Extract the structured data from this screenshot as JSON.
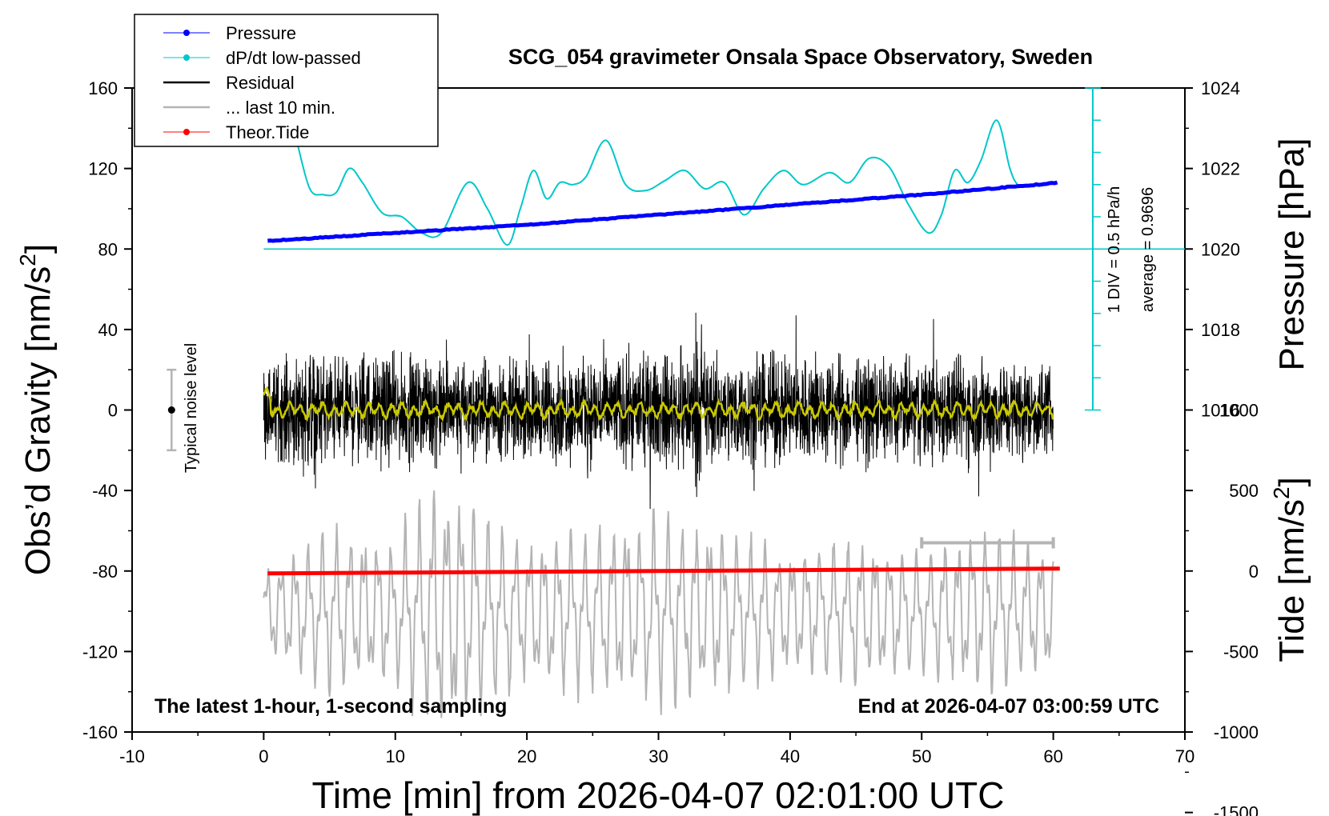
{
  "chart_data": {
    "type": "line",
    "title": "SCG_054 gravimeter Onsala Space Observatory, Sweden",
    "xlabel": "Time [min] from 2026-04-07 02:01:00 UTC",
    "ylabel_left": "Obs’d Gravity [nm/s",
    "ylabel_left_sup": "2",
    "ylabel_left_close": "]",
    "ylabel_pressure": "Pressure [hPa]",
    "ylabel_tide": "Tide [nm/s",
    "ylabel_tide_sup": "2",
    "ylabel_tide_close": "]",
    "xlim": [
      -10,
      70
    ],
    "ylim": [
      -160,
      160
    ],
    "x_ticks": [
      "-10",
      "0",
      "10",
      "20",
      "30",
      "40",
      "50",
      "60",
      "70"
    ],
    "y_ticks": [
      "-160",
      "-120",
      "-80",
      "-40",
      "0",
      "40",
      "80",
      "120",
      "160"
    ],
    "pressure_axis": {
      "ticks": [
        "1016",
        "1018",
        "1020",
        "1022",
        "1024"
      ],
      "values": [
        1016,
        1018,
        1020,
        1022,
        1024
      ],
      "ref": [
        1020,
        80
      ],
      "hpa_per_unit": 0.05
    },
    "tide_axis": {
      "ticks": [
        "-1500",
        "-1000",
        "-500",
        "0",
        "500",
        "1000"
      ],
      "values": [
        -1500,
        -1000,
        -500,
        0,
        500,
        1000
      ],
      "ref": [
        0,
        -80
      ],
      "nms2_per_unit": 12.5
    },
    "legend": {
      "placement": "top-left",
      "items": [
        {
          "label": "Pressure",
          "color": "#0000ff",
          "marker": true
        },
        {
          "label": "dP/dt low-passed",
          "color": "#00c8c8",
          "marker": true
        },
        {
          "label": "Residual",
          "color": "#000000",
          "marker": false
        },
        {
          "label": "... last 10 min.",
          "color": "#b4b4b4",
          "marker": false
        },
        {
          "label": "Theor.Tide",
          "color": "#ff0000",
          "marker": true
        }
      ]
    },
    "annotations": {
      "noise_label": "Typical noise level",
      "noise_bar": {
        "x": -7,
        "y": 0,
        "low": -20,
        "high": 20
      },
      "dpdt_scale": "1 DIV = 0.5 hPa/h",
      "dpdt_average": "average = 0.9696",
      "bottom_left": "The latest 1-hour, 1-second sampling",
      "bottom_right": "End at 2026-04-07 03:00:59 UTC",
      "last10_bar": {
        "x0": 50,
        "x1": 60,
        "y": -66
      }
    },
    "series": [
      {
        "name": "Pressure",
        "color": "#0000ff",
        "unit": "hPa",
        "x": [
          0.3,
          10,
          20,
          30,
          40,
          50,
          60.5
        ],
        "values": [
          1020.2,
          1020.4,
          1020.6,
          1020.85,
          1021.1,
          1021.35,
          1021.65
        ]
      },
      {
        "name": "dP/dt low-passed",
        "color": "#00c8c8",
        "x": [
          2.5,
          3.5,
          4.5,
          5.5,
          6.5,
          7.5,
          9,
          10.5,
          12,
          13.5,
          15.5,
          17,
          18.5,
          19.5,
          20.5,
          21.5,
          22.5,
          23.5,
          24.5,
          26,
          27.5,
          29,
          30.5,
          32,
          33.5,
          35,
          36.5,
          38,
          39.5,
          41,
          43,
          44.5,
          46,
          47.5,
          49,
          50.5,
          51.5,
          52.5,
          53.5,
          54.5,
          55.7,
          56.7,
          57.3,
          58
        ],
        "values": [
          134,
          110,
          107,
          108,
          120,
          113,
          98,
          96,
          88,
          88,
          113,
          100,
          82,
          100,
          119,
          105,
          113,
          112,
          116,
          134,
          112,
          109,
          114,
          119,
          110,
          113,
          97,
          110,
          119,
          112,
          118,
          113,
          125,
          121,
          102,
          88,
          97,
          119,
          113,
          124,
          144,
          120,
          112,
          112
        ]
      },
      {
        "name": "Residual",
        "color": "#000000",
        "x_range": [
          0,
          60
        ],
        "note": "1-second residual, amplitude about ±40 nm/s² around 0",
        "envelope": {
          "x": [
            0,
            3,
            5,
            10,
            15,
            20,
            25,
            30,
            33,
            35,
            40,
            45,
            50,
            55,
            60
          ],
          "values": [
            40,
            55,
            50,
            48,
            45,
            44,
            50,
            48,
            60,
            45,
            52,
            47,
            48,
            50,
            40
          ]
        }
      },
      {
        "name": "residual low-passed",
        "color": "#c8c800",
        "x_range": [
          0,
          60
        ],
        "note": "smoothed residual near 0"
      },
      {
        "name": "... last 10 min.",
        "color": "#b4b4b4",
        "x_range": [
          0,
          60
        ],
        "note": "oscillating trace centred near -100 nm/s², amplitude up to about ±60",
        "envelope": {
          "x": [
            0,
            5,
            10,
            13,
            15,
            20,
            25,
            30,
            35,
            40,
            45,
            50,
            55,
            60
          ],
          "values": [
            20,
            40,
            35,
            60,
            55,
            35,
            40,
            45,
            40,
            30,
            35,
            30,
            40,
            30
          ]
        }
      },
      {
        "name": "Theor.Tide",
        "color": "#ff0000",
        "unit": "nm/s²",
        "x": [
          0.3,
          10,
          20,
          30,
          40,
          50,
          60.5
        ],
        "values": [
          -15,
          -10,
          -5,
          0,
          5,
          10,
          15
        ]
      }
    ]
  }
}
